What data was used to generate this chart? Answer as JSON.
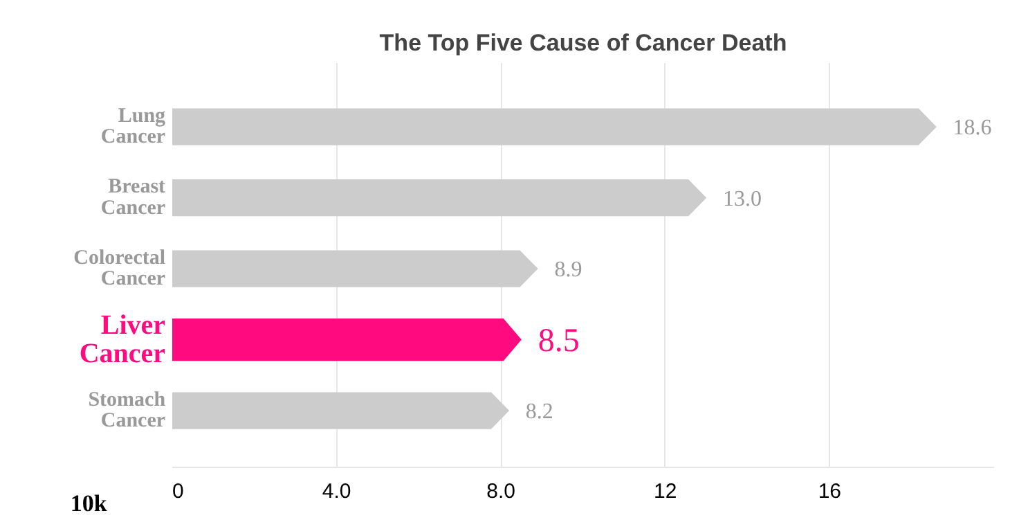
{
  "chart_data": {
    "type": "bar",
    "orientation": "horizontal",
    "title": "The Top Five Cause of Cancer Death",
    "xlabel": "10k",
    "categories": [
      "Lung\nCancer",
      "Breast\nCancer",
      "Colorectal\nCancer",
      "Liver\nCancer",
      "Stomach\nCancer"
    ],
    "values": [
      18.6,
      13.0,
      8.9,
      8.5,
      8.2
    ],
    "colors": [
      "#cccccc",
      "#cccccc",
      "#cccccc",
      "#ff0a7f",
      "#cccccc"
    ],
    "value_labels": [
      "18.6",
      "13.0",
      "8.9",
      "8.5",
      "8.2"
    ],
    "xlim": [
      0,
      20
    ],
    "xticks": [
      0,
      {
        "value": 4,
        "label": "4.0"
      },
      {
        "value": 8,
        "label": "8.0"
      },
      12,
      16
    ],
    "grid": "x"
  }
}
